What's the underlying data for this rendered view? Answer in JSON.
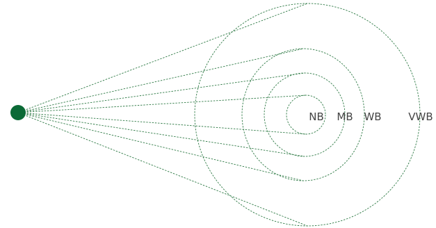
{
  "diagram": {
    "colors": {
      "line": "#2e7a45",
      "source": "#0b6a36",
      "label": "#444444"
    },
    "source_icon": "filled-circle",
    "beams": [
      {
        "label": "NB"
      },
      {
        "label": "MB"
      },
      {
        "label": "WB"
      },
      {
        "label": "VWB"
      }
    ]
  }
}
